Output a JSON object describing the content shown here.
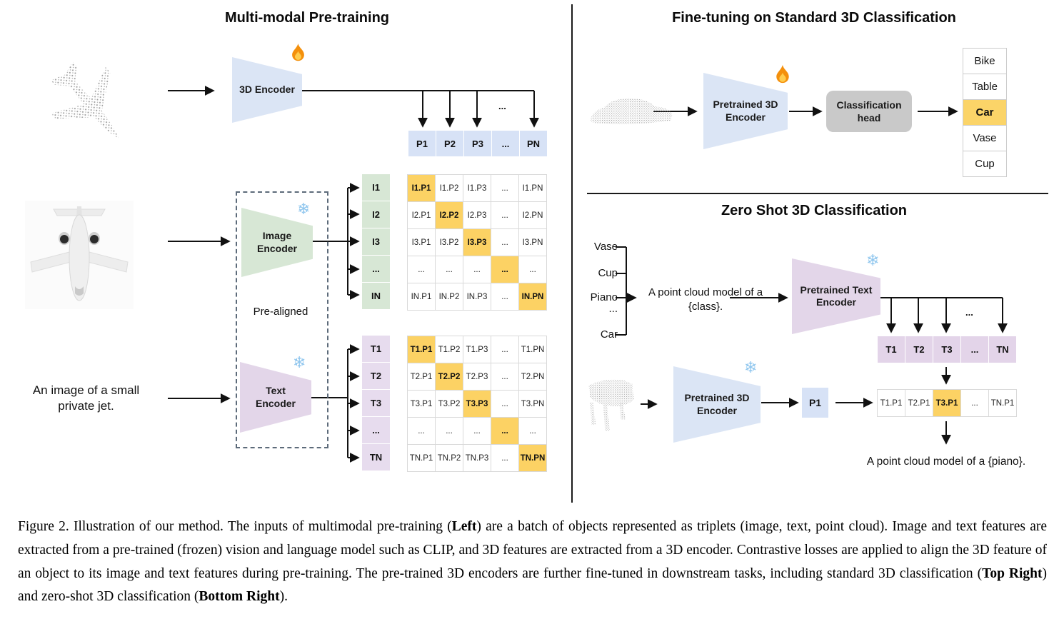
{
  "left": {
    "title": "Multi-modal Pre-training",
    "encoder_3d_label": "3D Encoder",
    "image_encoder_label": "Image Encoder",
    "text_encoder_label": "Text Encoder",
    "pre_aligned_label": "Pre-aligned",
    "image_caption": "An image of a small private jet.",
    "ellipsis": "...",
    "p_row": [
      "P1",
      "P2",
      "P3",
      "...",
      "PN"
    ],
    "i_col": [
      "I1",
      "I2",
      "I3",
      "...",
      "IN"
    ],
    "t_col": [
      "T1",
      "T2",
      "T3",
      "...",
      "TN"
    ],
    "i_matrix": [
      [
        "I1.P1",
        "I1.P2",
        "I1.P3",
        "...",
        "I1.PN"
      ],
      [
        "I2.P1",
        "I2.P2",
        "I2.P3",
        "...",
        "I2.PN"
      ],
      [
        "I3.P1",
        "I3.P2",
        "I3.P3",
        "...",
        "I3.PN"
      ],
      [
        "...",
        "...",
        "...",
        "...",
        "..."
      ],
      [
        "IN.P1",
        "IN.P2",
        "IN.P3",
        "...",
        "IN.PN"
      ]
    ],
    "t_matrix": [
      [
        "T1.P1",
        "T1.P2",
        "T1.P3",
        "...",
        "T1.PN"
      ],
      [
        "T2.P1",
        "T2.P2",
        "T2.P3",
        "...",
        "T2.PN"
      ],
      [
        "T3.P1",
        "T3.P2",
        "T3.P3",
        "...",
        "T3.PN"
      ],
      [
        "...",
        "...",
        "...",
        "...",
        "..."
      ],
      [
        "TN.P1",
        "TN.P2",
        "TN.P3",
        "...",
        "TN.PN"
      ]
    ]
  },
  "top_right": {
    "title": "Fine-tuning on Standard 3D Classification",
    "encoder_label": "Pretrained 3D Encoder",
    "head_label": "Classification head",
    "classes": [
      "Bike",
      "Table",
      "Car",
      "Vase",
      "Cup"
    ],
    "highlight_index": 2
  },
  "bottom_right": {
    "title": "Zero Shot 3D Classification",
    "class_labels": [
      "Vase",
      "Cup",
      "Piano",
      "...",
      "Car"
    ],
    "prompt": "A point cloud model of a {class}.",
    "text_encoder_label": "Pretrained Text Encoder",
    "encoder_3d_label": "Pretrained 3D Encoder",
    "t_row": [
      "T1",
      "T2",
      "T3",
      "...",
      "TN"
    ],
    "p1_label": "P1",
    "tp_row": [
      "T1.P1",
      "T2.P1",
      "T3.P1",
      "...",
      "TN.P1"
    ],
    "tp_highlight_index": 2,
    "result": "A point cloud model of a {piano}.",
    "ellipsis": "..."
  },
  "caption": {
    "t1": "Figure 2. Illustration of our method. The inputs of multimodal pre-training (",
    "b1": "Left",
    "t2": ") are a batch of objects represented as triplets (image, text, point cloud). Image and text features are extracted from a pre-trained (frozen) vision and language model such as CLIP, and 3D features are extracted from a 3D encoder. Contrastive losses are applied to align the 3D feature of an object to its image and text features during pre-training. The pre-trained 3D encoders are further fine-tuned in downstream tasks, including standard 3D classification (",
    "b2": "Top Right",
    "t3": ") and zero-shot 3D classification (",
    "b3": "Bottom Right",
    "t4": ")."
  },
  "colors": {
    "encoder_blue": "#dbe5f5",
    "encoder_green": "#d7e7d5",
    "encoder_purple": "#e3d6e9",
    "highlight_orange": "#fcd264",
    "head_gray": "#c9c9c9"
  }
}
